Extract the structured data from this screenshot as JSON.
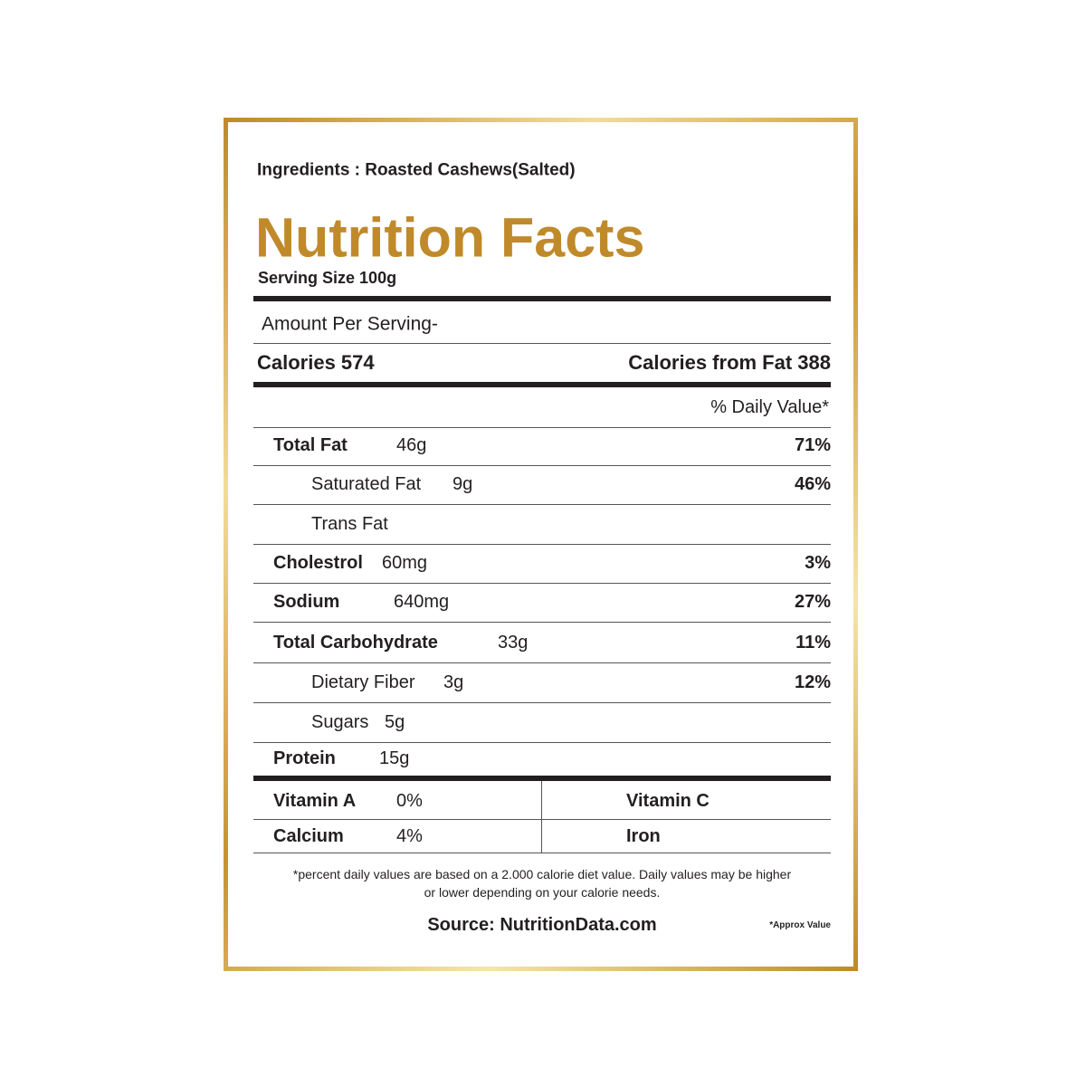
{
  "label": {
    "ingredients": "Ingredients : Roasted Cashews(Salted)",
    "title": "Nutrition Facts",
    "serving_size": "Serving Size 100g",
    "amount_per_serving": "Amount Per Serving-",
    "calories": "Calories 574",
    "calories_from_fat": "Calories from Fat 388",
    "daily_value_header": "% Daily Value*",
    "rows": [
      {
        "label": "Total Fat",
        "amount": "46g",
        "dv": "71%"
      },
      {
        "label": "Saturated Fat",
        "amount": "9g",
        "dv": "46%"
      },
      {
        "label": "Trans Fat"
      },
      {
        "label": "Cholestrol",
        "amount": "60mg",
        "dv": "3%"
      },
      {
        "label": "Sodium",
        "amount": "640mg",
        "dv": "27%"
      },
      {
        "label": "Total Carbohydrate",
        "amount": "33g",
        "dv": "11%"
      },
      {
        "label": "Dietary Fiber",
        "amount": "3g",
        "dv": "12%"
      },
      {
        "label": "Sugars",
        "amount": "5g"
      },
      {
        "label": "Protein",
        "amount": "15g"
      }
    ],
    "vitamins": [
      [
        {
          "label": "Vitamin A",
          "value": "0%"
        },
        {
          "label": "Vitamin C"
        }
      ],
      [
        {
          "label": "Calcium",
          "value": "4%"
        },
        {
          "label": "Iron"
        }
      ]
    ],
    "footnote": [
      "*percent daily values are based on a 2.000 calorie diet value. Daily values may be higher",
      "or lower depending on your calorie needs."
    ],
    "source": "Source: NutritionData.com",
    "approx": "*Approx Value"
  }
}
